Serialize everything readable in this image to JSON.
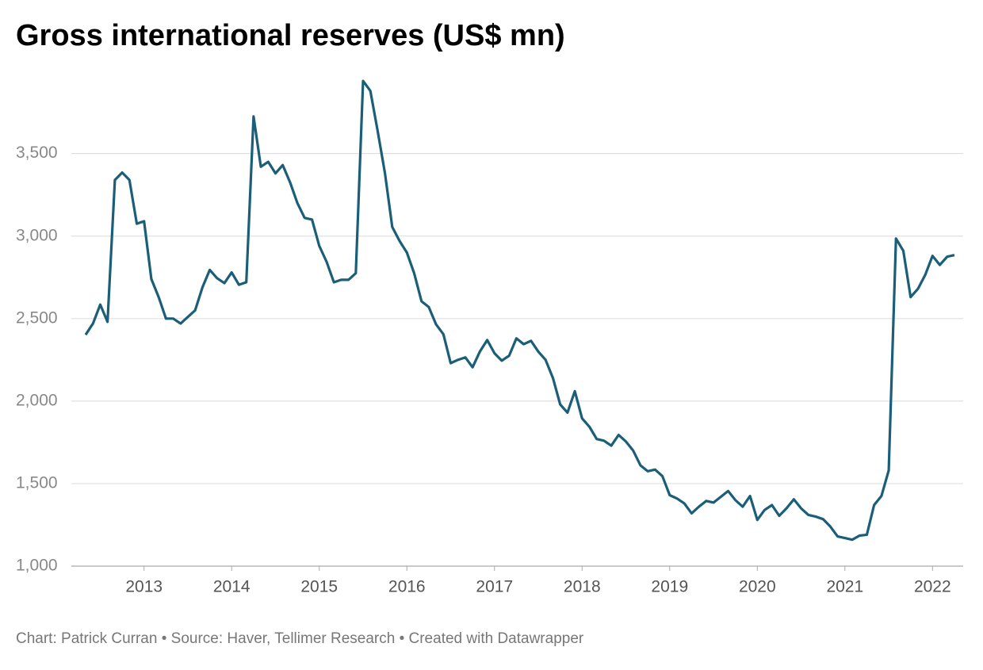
{
  "chart_data": {
    "type": "line",
    "title": "Gross international reserves (US$ mn)",
    "footer": "Chart: Patrick Curran • Source: Haver, Tellimer Research • Created with Datawrapper",
    "x": [
      2012.333,
      2012.417,
      2012.5,
      2012.583,
      2012.667,
      2012.75,
      2012.833,
      2012.917,
      2013.0,
      2013.083,
      2013.167,
      2013.25,
      2013.333,
      2013.417,
      2013.5,
      2013.583,
      2013.667,
      2013.75,
      2013.833,
      2013.917,
      2014.0,
      2014.083,
      2014.167,
      2014.25,
      2014.333,
      2014.417,
      2014.5,
      2014.583,
      2014.667,
      2014.75,
      2014.833,
      2014.917,
      2015.0,
      2015.083,
      2015.167,
      2015.25,
      2015.333,
      2015.417,
      2015.5,
      2015.583,
      2015.667,
      2015.75,
      2015.833,
      2015.917,
      2016.0,
      2016.083,
      2016.167,
      2016.25,
      2016.333,
      2016.417,
      2016.5,
      2016.583,
      2016.667,
      2016.75,
      2016.833,
      2016.917,
      2017.0,
      2017.083,
      2017.167,
      2017.25,
      2017.333,
      2017.417,
      2017.5,
      2017.583,
      2017.667,
      2017.75,
      2017.833,
      2017.917,
      2018.0,
      2018.083,
      2018.167,
      2018.25,
      2018.333,
      2018.417,
      2018.5,
      2018.583,
      2018.667,
      2018.75,
      2018.833,
      2018.917,
      2019.0,
      2019.083,
      2019.167,
      2019.25,
      2019.333,
      2019.417,
      2019.5,
      2019.583,
      2019.667,
      2019.75,
      2019.833,
      2019.917,
      2020.0,
      2020.083,
      2020.167,
      2020.25,
      2020.333,
      2020.417,
      2020.5,
      2020.583,
      2020.667,
      2020.75,
      2020.833,
      2020.917,
      2021.0,
      2021.083,
      2021.167,
      2021.25,
      2021.333,
      2021.417,
      2021.5,
      2021.583,
      2021.667,
      2021.75,
      2021.833,
      2021.917,
      2022.0,
      2022.083,
      2022.167,
      2022.25
    ],
    "series": [
      {
        "name": "Gross international reserves",
        "color": "#1b5e78",
        "values": [
          2402,
          2470,
          2585,
          2480,
          3340,
          3385,
          3340,
          3075,
          3090,
          2740,
          2630,
          2500,
          2500,
          2470,
          2510,
          2550,
          2690,
          2795,
          2745,
          2715,
          2780,
          2705,
          2720,
          3725,
          3420,
          3450,
          3380,
          3430,
          3325,
          3200,
          3110,
          3100,
          2940,
          2845,
          2720,
          2735,
          2735,
          2775,
          3940,
          3880,
          3635,
          3380,
          3055,
          2970,
          2900,
          2775,
          2605,
          2570,
          2465,
          2405,
          2230,
          2250,
          2265,
          2205,
          2300,
          2370,
          2290,
          2245,
          2275,
          2380,
          2345,
          2365,
          2300,
          2250,
          2140,
          1980,
          1930,
          2060,
          1895,
          1845,
          1770,
          1760,
          1730,
          1795,
          1755,
          1700,
          1610,
          1575,
          1585,
          1545,
          1430,
          1410,
          1380,
          1320,
          1360,
          1395,
          1385,
          1420,
          1455,
          1400,
          1360,
          1425,
          1280,
          1340,
          1370,
          1305,
          1350,
          1405,
          1350,
          1310,
          1300,
          1285,
          1240,
          1180,
          1170,
          1160,
          1185,
          1190,
          1370,
          1425,
          1580,
          2985,
          2910,
          2630,
          2680,
          2765,
          2880,
          2825,
          2875,
          2885
        ]
      }
    ],
    "xlim": [
      2012.17,
      2022.35
    ],
    "xticks": [
      2013,
      2014,
      2015,
      2016,
      2017,
      2018,
      2019,
      2020,
      2021,
      2022
    ],
    "ylim": [
      1000,
      3950
    ],
    "yticks": [
      {
        "value": 1000,
        "label": "1,000"
      },
      {
        "value": 1500,
        "label": "1,500"
      },
      {
        "value": 2000,
        "label": "2,000"
      },
      {
        "value": 2500,
        "label": "2,500"
      },
      {
        "value": 3000,
        "label": "3,000"
      },
      {
        "value": 3500,
        "label": "3,500"
      }
    ],
    "grid": true
  }
}
